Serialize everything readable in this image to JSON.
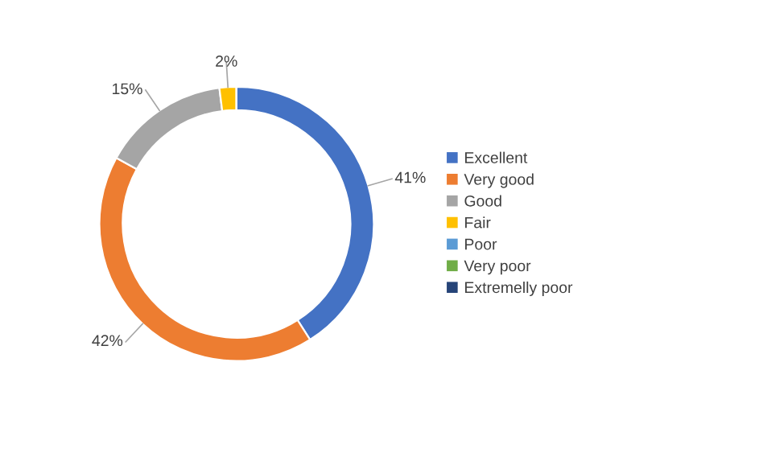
{
  "chart_data": {
    "type": "donut",
    "categories": [
      "Excellent",
      "Very good",
      "Good",
      "Fair",
      "Poor",
      "Very poor",
      "Extremelly poor"
    ],
    "values": [
      41,
      42,
      15,
      2,
      0,
      0,
      0
    ],
    "colors": [
      "#4472c4",
      "#ed7d31",
      "#a5a5a5",
      "#ffc000",
      "#5b9bd5",
      "#70ad47",
      "#264478"
    ],
    "value_labels": [
      "41%",
      "42%",
      "15%",
      "2%",
      null,
      null,
      null
    ],
    "legend": "right"
  }
}
